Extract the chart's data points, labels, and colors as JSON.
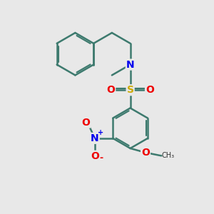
{
  "bg_color": "#e8e8e8",
  "bond_color": "#3d7a6e",
  "bond_width": 1.8,
  "atom_colors": {
    "N": "#0000ee",
    "S": "#ccaa00",
    "O": "#ee0000",
    "C": "#333333"
  },
  "font_size": 10,
  "font_size_small": 8
}
